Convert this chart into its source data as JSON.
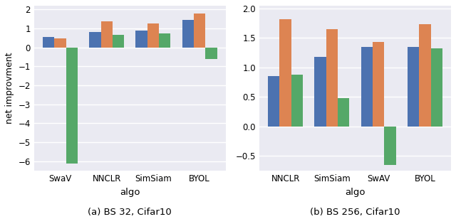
{
  "left": {
    "categories": [
      "SwaV",
      "NNCLR",
      "SimSiam",
      "BYOL"
    ],
    "series": {
      "blue": [
        0.55,
        0.82,
        0.88,
        1.45
      ],
      "orange": [
        0.48,
        1.35,
        1.25,
        1.78
      ],
      "green": [
        -6.1,
        0.65,
        0.72,
        -0.6
      ]
    },
    "xlabel": "algo",
    "ylabel": "net improvment",
    "caption": "(a) BS 32, Cifar10",
    "ylim": [
      -6.5,
      2.2
    ]
  },
  "right": {
    "categories": [
      "NNCLR",
      "SimSiam",
      "SwAV",
      "BYOL"
    ],
    "series": {
      "blue": [
        0.85,
        1.18,
        1.35,
        1.35
      ],
      "orange": [
        1.82,
        1.65,
        1.43,
        1.73
      ],
      "green": [
        0.88,
        0.48,
        -0.65,
        1.32
      ]
    },
    "xlabel": "algo",
    "ylabel": "",
    "caption": "(b) BS 256, Cifar10",
    "ylim": [
      -0.75,
      2.05
    ]
  },
  "colors": {
    "blue": "#4C72B0",
    "orange": "#DD8452",
    "green": "#55A868"
  },
  "bar_width": 0.25,
  "background_color": "#EAEAF2",
  "grid_color": "#FFFFFF"
}
